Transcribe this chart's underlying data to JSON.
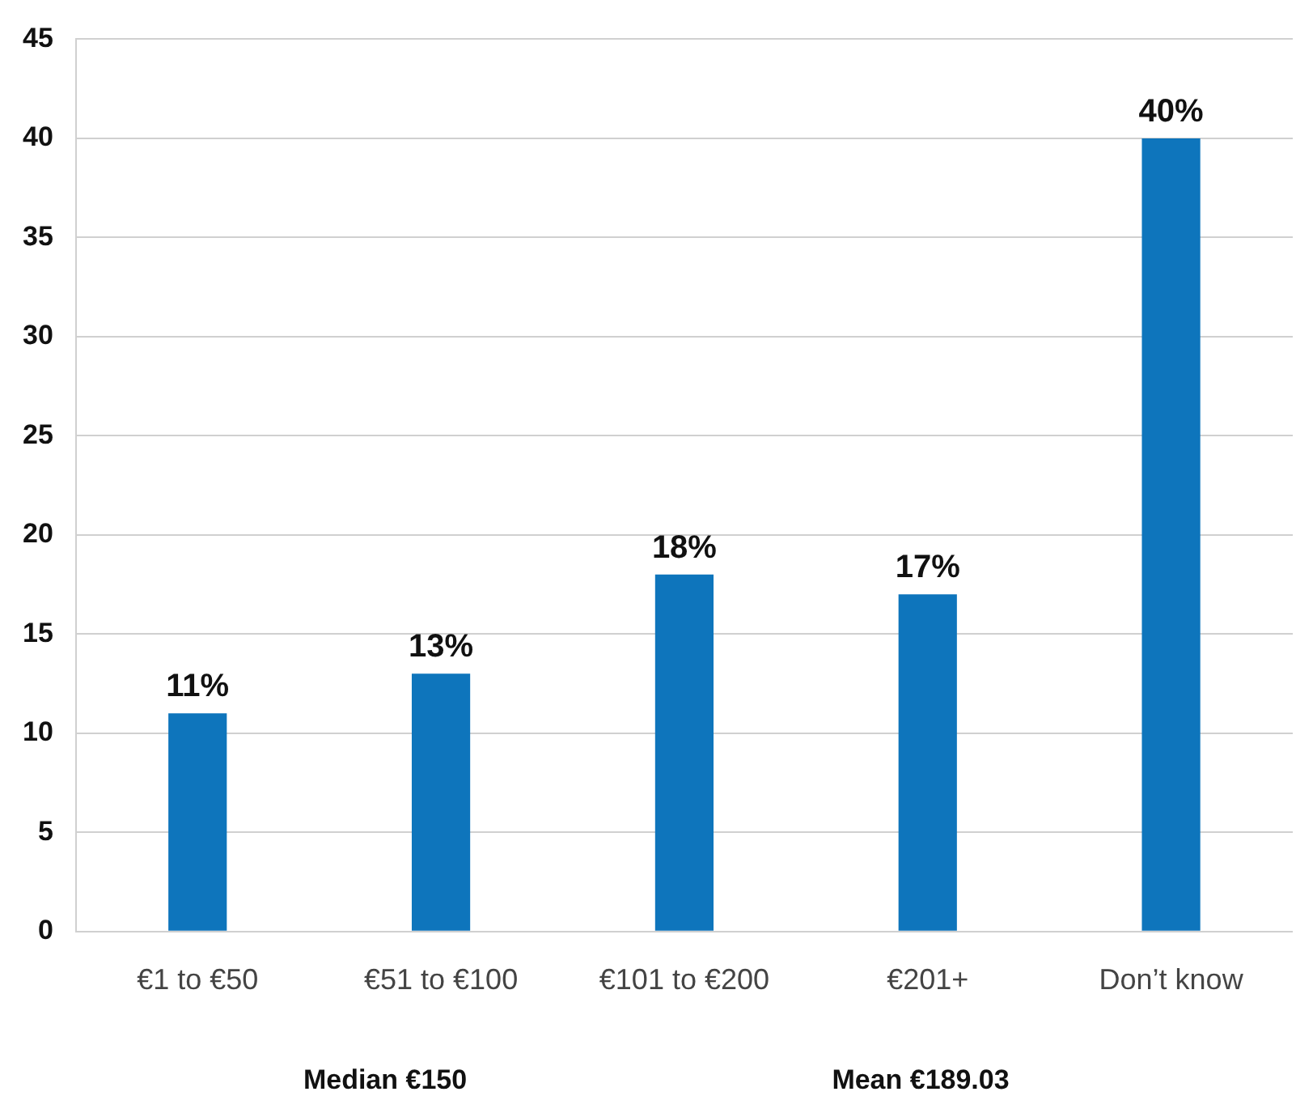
{
  "chart_data": {
    "type": "bar",
    "categories": [
      "€1 to €50",
      "€51 to €100",
      "€101 to €200",
      "€201+",
      "Don’t know"
    ],
    "values": [
      11,
      13,
      18,
      17,
      40
    ],
    "value_labels": [
      "11%",
      "13%",
      "18%",
      "17%",
      "40%"
    ],
    "color": "#0e75bc",
    "ylim": [
      0,
      45
    ],
    "yticks": [
      0,
      5,
      10,
      15,
      20,
      25,
      30,
      35,
      40,
      45
    ],
    "grid": "y",
    "annotations": [
      "Median €150",
      "Mean €189.03"
    ]
  }
}
